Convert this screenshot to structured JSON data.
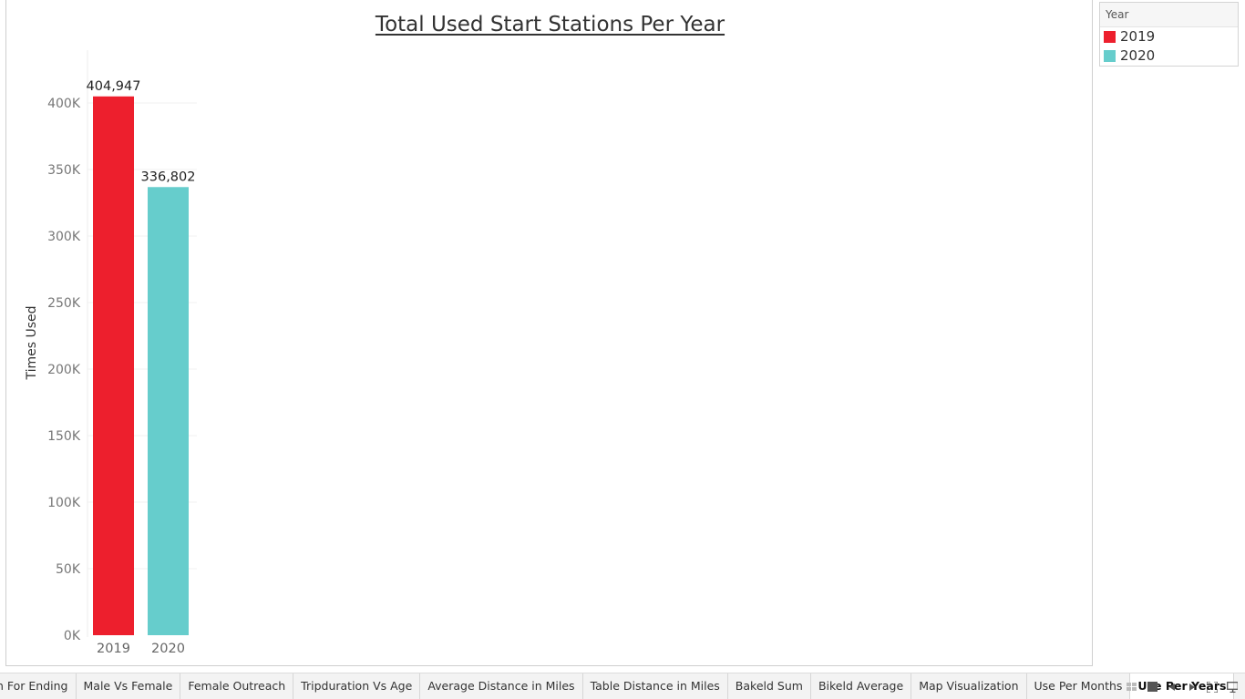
{
  "chart_data": {
    "type": "bar",
    "title": "Total Used Start Stations Per Year",
    "ylabel": "Times Used",
    "xlabel": "",
    "categories": [
      "2019",
      "2020"
    ],
    "values": [
      404947,
      336802
    ],
    "value_labels": [
      "404,947",
      "336,802"
    ],
    "colors": [
      "#ed1f2d",
      "#66cdcc"
    ],
    "ylim": [
      0,
      440000
    ],
    "yticks": [
      0,
      50000,
      100000,
      150000,
      200000,
      250000,
      300000,
      350000,
      400000
    ],
    "ytick_labels": [
      "0K",
      "50K",
      "100K",
      "150K",
      "200K",
      "250K",
      "300K",
      "350K",
      "400K"
    ],
    "grid": true,
    "legend_position": "top-right"
  },
  "legend": {
    "title": "Year",
    "items": [
      {
        "label": "2019",
        "color": "#ed1f2d"
      },
      {
        "label": "2020",
        "color": "#66cdcc"
      }
    ]
  },
  "tabs": [
    {
      "label": "n For Ending"
    },
    {
      "label": "Male Vs Female"
    },
    {
      "label": "Female Outreach"
    },
    {
      "label": "Tripduration Vs Age"
    },
    {
      "label": "Average Distance in Miles"
    },
    {
      "label": "Table Distance in Miles"
    },
    {
      "label": "Bakeld Sum"
    },
    {
      "label": "Bikeld Average"
    },
    {
      "label": "Map Visualization"
    },
    {
      "label": "Use Per Months"
    },
    {
      "label": "Use Per Years",
      "active": true
    }
  ],
  "tab_controls": [
    {
      "icon": "sheet-sorter-icon"
    },
    {
      "icon": "filmstrip-icon"
    },
    {
      "icon": "scroll-left-icon"
    },
    {
      "icon": "scroll-right-icon"
    },
    {
      "icon": "fullscreen-icon"
    },
    {
      "icon": "presentation-mode-icon"
    }
  ]
}
